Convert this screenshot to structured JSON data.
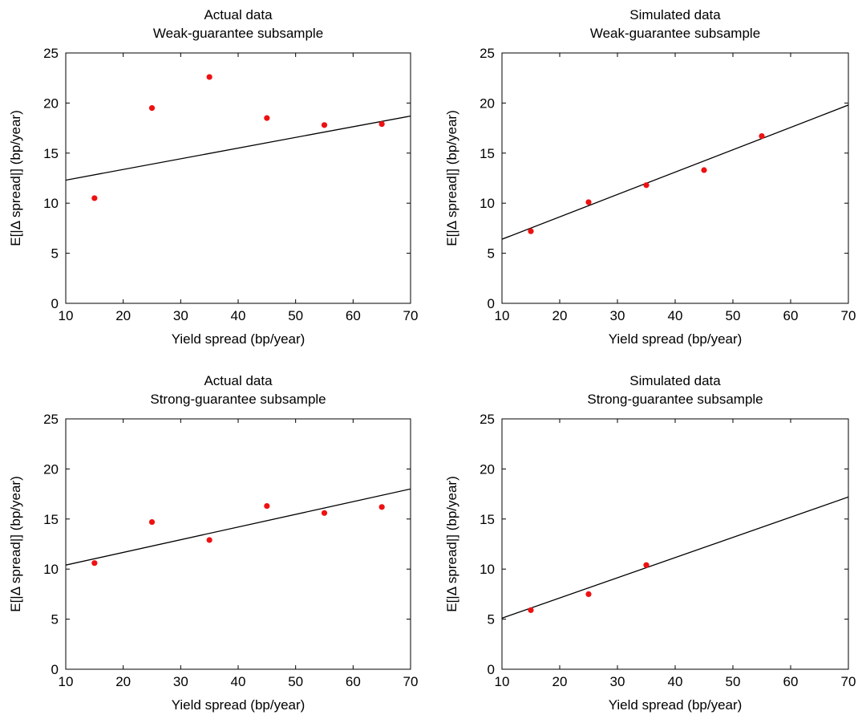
{
  "chart_data": [
    {
      "type": "scatter",
      "title": [
        "Actual data",
        "Weak-guarantee subsample"
      ],
      "xlabel": "Yield spread (bp/year)",
      "ylabel": "E[|Δ spread|]  (bp/year)",
      "xlim": [
        10,
        70
      ],
      "ylim": [
        0,
        25
      ],
      "xticks": [
        10,
        20,
        30,
        40,
        50,
        60,
        70
      ],
      "yticks": [
        0,
        5,
        10,
        15,
        20,
        25
      ],
      "grid": false,
      "points": {
        "x": [
          15,
          25,
          35,
          45,
          55,
          65
        ],
        "y": [
          10.5,
          19.5,
          22.6,
          18.5,
          17.8,
          17.9
        ]
      },
      "fit_line": {
        "x": [
          10,
          70
        ],
        "y": [
          12.3,
          18.7
        ]
      }
    },
    {
      "type": "scatter",
      "title": [
        "Simulated data",
        "Weak-guarantee subsample"
      ],
      "xlabel": "Yield spread (bp/year)",
      "ylabel": "E[|Δ spread|]  (bp/year)",
      "xlim": [
        10,
        70
      ],
      "ylim": [
        0,
        25
      ],
      "xticks": [
        10,
        20,
        30,
        40,
        50,
        60,
        70
      ],
      "yticks": [
        0,
        5,
        10,
        15,
        20,
        25
      ],
      "grid": false,
      "points": {
        "x": [
          15,
          25,
          35,
          45,
          55
        ],
        "y": [
          7.2,
          10.1,
          11.8,
          13.3,
          16.7
        ]
      },
      "fit_line": {
        "x": [
          10,
          70
        ],
        "y": [
          6.4,
          19.8
        ]
      }
    },
    {
      "type": "scatter",
      "title": [
        "Actual data",
        "Strong-guarantee subsample"
      ],
      "xlabel": "Yield spread (bp/year)",
      "ylabel": "E[|Δ spread|]  (bp/year)",
      "xlim": [
        10,
        70
      ],
      "ylim": [
        0,
        25
      ],
      "xticks": [
        10,
        20,
        30,
        40,
        50,
        60,
        70
      ],
      "yticks": [
        0,
        5,
        10,
        15,
        20,
        25
      ],
      "grid": false,
      "points": {
        "x": [
          15,
          25,
          35,
          45,
          55,
          65
        ],
        "y": [
          10.6,
          14.7,
          12.9,
          16.3,
          15.6,
          16.2
        ]
      },
      "fit_line": {
        "x": [
          10,
          70
        ],
        "y": [
          10.4,
          18.0
        ]
      }
    },
    {
      "type": "scatter",
      "title": [
        "Simulated data",
        "Strong-guarantee subsample"
      ],
      "xlabel": "Yield spread (bp/year)",
      "ylabel": "E[|Δ spread|]  (bp/year)",
      "xlim": [
        10,
        70
      ],
      "ylim": [
        0,
        25
      ],
      "xticks": [
        10,
        20,
        30,
        40,
        50,
        60,
        70
      ],
      "yticks": [
        0,
        5,
        10,
        15,
        20,
        25
      ],
      "grid": false,
      "points": {
        "x": [
          15,
          25,
          35
        ],
        "y": [
          5.9,
          7.5,
          10.4
        ]
      },
      "fit_line": {
        "x": [
          10,
          70
        ],
        "y": [
          5.1,
          17.2
        ]
      }
    }
  ],
  "colors": {
    "points": "#ee1111",
    "line": "#000000",
    "axes": "#000000"
  }
}
